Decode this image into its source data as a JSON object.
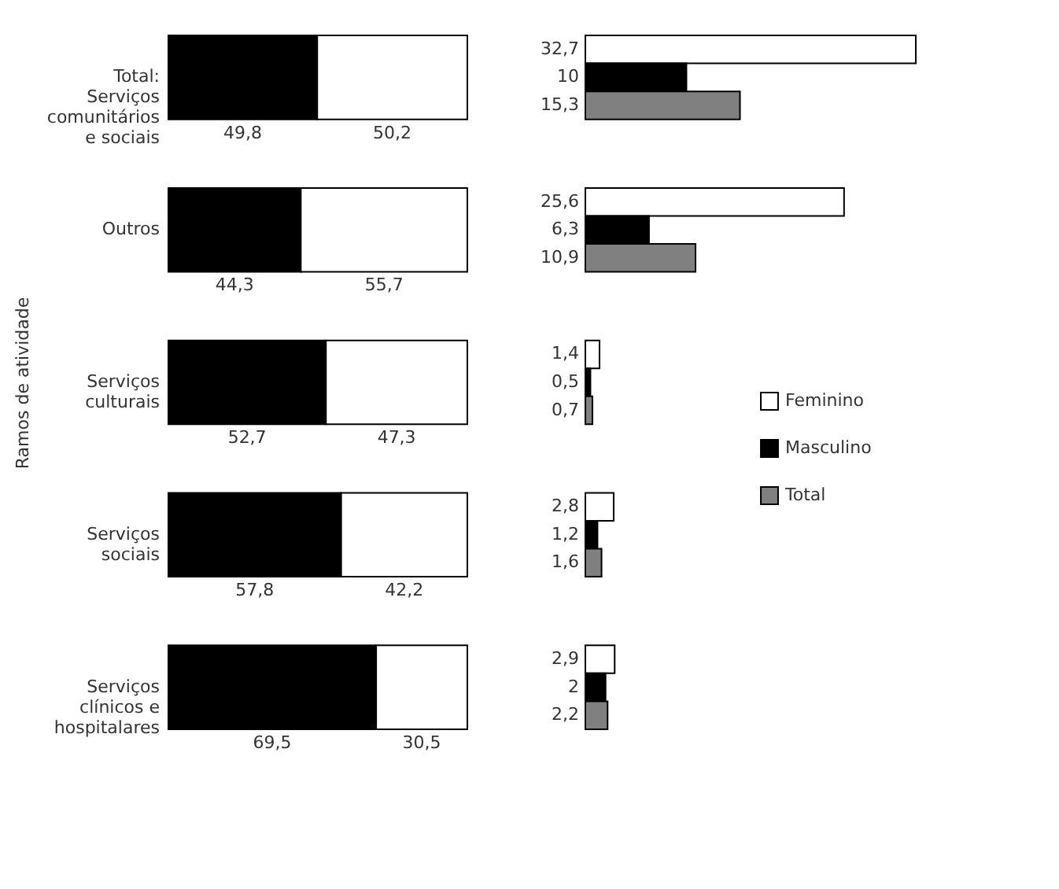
{
  "chart_data": [
    {
      "type": "bar",
      "orientation": "horizontal",
      "stacked": true,
      "ylabel": "Ramos de atividade",
      "categories": [
        "Total: Serviços comunitários e sociais",
        "Outros",
        "Serviços culturais",
        "Serviços sociais",
        "Serviços clínicos e hospitalares"
      ],
      "xlim": [
        0,
        100
      ],
      "tick_labels": "y",
      "grid": false,
      "legend": false,
      "series": [
        {
          "color": "#000000",
          "values": [
            49.8,
            44.3,
            52.7,
            57.8,
            69.5
          ],
          "value_labels": [
            "49,8",
            "44,3",
            "52,7",
            "57,8",
            "69,5"
          ]
        },
        {
          "color": "#ffffff",
          "values": [
            50.2,
            55.7,
            47.3,
            42.2,
            30.5
          ],
          "value_labels": [
            "50,2",
            "55,7",
            "47,3",
            "42,2",
            "30,5"
          ]
        }
      ]
    },
    {
      "type": "bar",
      "orientation": "horizontal",
      "categories": [
        "Total: Serviços comunitários e sociais",
        "Outros",
        "Serviços culturais",
        "Serviços sociais",
        "Serviços clínicos e hospitalares"
      ],
      "tick_labels": false,
      "grid": false,
      "legend": "right",
      "series": [
        {
          "name": "Feminino",
          "color": "#ffffff",
          "values": [
            32.7,
            25.6,
            1.4,
            2.8,
            2.9
          ],
          "value_labels": [
            "32,7",
            "25,6",
            "1,4",
            "2,8",
            "2,9"
          ]
        },
        {
          "name": "Masculino",
          "color": "#000000",
          "values": [
            10,
            6.3,
            0.5,
            1.2,
            2
          ],
          "value_labels": [
            "10",
            "6,3",
            "0,5",
            "1,2",
            "2"
          ]
        },
        {
          "name": "Total",
          "color": "#808080",
          "values": [
            15.3,
            10.9,
            0.7,
            1.6,
            2.2
          ],
          "value_labels": [
            "15,3",
            "10,9",
            "0,7",
            "1,6",
            "2,2"
          ]
        }
      ]
    }
  ]
}
